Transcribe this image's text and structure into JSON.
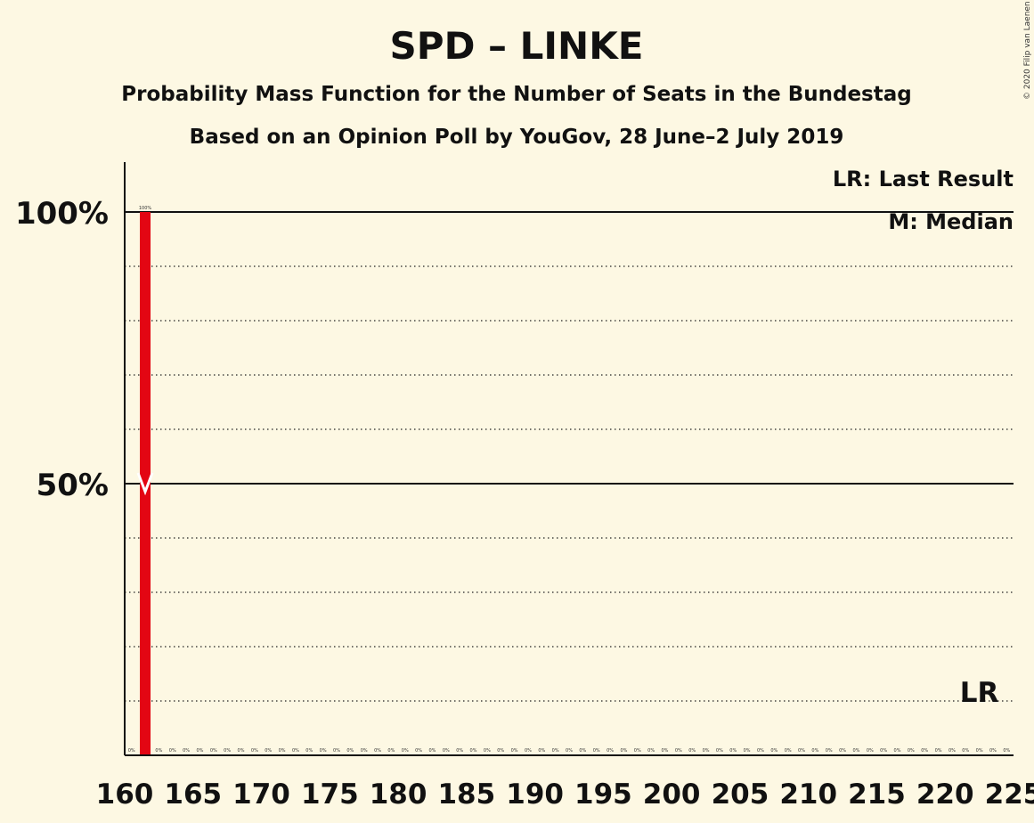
{
  "chart_data": {
    "type": "bar",
    "title": "SPD – LINKE",
    "subtitle": "Probability Mass Function for the Number of Seats in the Bundestag",
    "subtitle2": "Based on an Opinion Poll by YouGov, 28 June–2 July 2019",
    "copyright": "© 2020 Filip van Laenen",
    "legend": [
      "LR: Last Result",
      "M: Median"
    ],
    "legend_position": "top-right",
    "xlim": [
      160,
      225
    ],
    "ylim": [
      0,
      110
    ],
    "x_ticks": [
      160,
      165,
      170,
      175,
      180,
      185,
      190,
      195,
      200,
      205,
      210,
      215,
      220,
      225
    ],
    "y_ticks_major": [
      {
        "value": 50,
        "label": "50%"
      },
      {
        "value": 100,
        "label": "100%"
      }
    ],
    "y_gridlines_minor": [
      10,
      20,
      30,
      40,
      60,
      70,
      80,
      90
    ],
    "bar_color": "#E30613",
    "x": [
      160,
      161,
      162,
      163,
      164,
      165,
      166,
      167,
      168,
      169,
      170,
      171,
      172,
      173,
      174,
      175,
      176,
      177,
      178,
      179,
      180,
      181,
      182,
      183,
      184,
      185,
      186,
      187,
      188,
      189,
      190,
      191,
      192,
      193,
      194,
      195,
      196,
      197,
      198,
      199,
      200,
      201,
      202,
      203,
      204,
      205,
      206,
      207,
      208,
      209,
      210,
      211,
      212,
      213,
      214,
      215,
      216,
      217,
      218,
      219,
      220,
      221,
      222,
      223,
      224
    ],
    "values": [
      0,
      100,
      0,
      0,
      0,
      0,
      0,
      0,
      0,
      0,
      0,
      0,
      0,
      0,
      0,
      0,
      0,
      0,
      0,
      0,
      0,
      0,
      0,
      0,
      0,
      0,
      0,
      0,
      0,
      0,
      0,
      0,
      0,
      0,
      0,
      0,
      0,
      0,
      0,
      0,
      0,
      0,
      0,
      0,
      0,
      0,
      0,
      0,
      0,
      0,
      0,
      0,
      0,
      0,
      0,
      0,
      0,
      0,
      0,
      0,
      0,
      0,
      0,
      0,
      0
    ],
    "value_labels": [
      "0%",
      "100%",
      "0%",
      "0%",
      "0%",
      "0%",
      "0%",
      "0%",
      "0%",
      "0%",
      "0%",
      "0%",
      "0%",
      "0%",
      "0%",
      "0%",
      "0%",
      "0%",
      "0%",
      "0%",
      "0%",
      "0%",
      "0%",
      "0%",
      "0%",
      "0%",
      "0%",
      "0%",
      "0%",
      "0%",
      "0%",
      "0%",
      "0%",
      "0%",
      "0%",
      "0%",
      "0%",
      "0%",
      "0%",
      "0%",
      "0%",
      "0%",
      "0%",
      "0%",
      "0%",
      "0%",
      "0%",
      "0%",
      "0%",
      "0%",
      "0%",
      "0%",
      "0%",
      "0%",
      "0%",
      "0%",
      "0%",
      "0%",
      "0%",
      "0%",
      "0%",
      "0%",
      "0%",
      "0%",
      "0%"
    ],
    "median_seat": 161,
    "last_result_seat": 222,
    "last_result_label": "LR"
  }
}
